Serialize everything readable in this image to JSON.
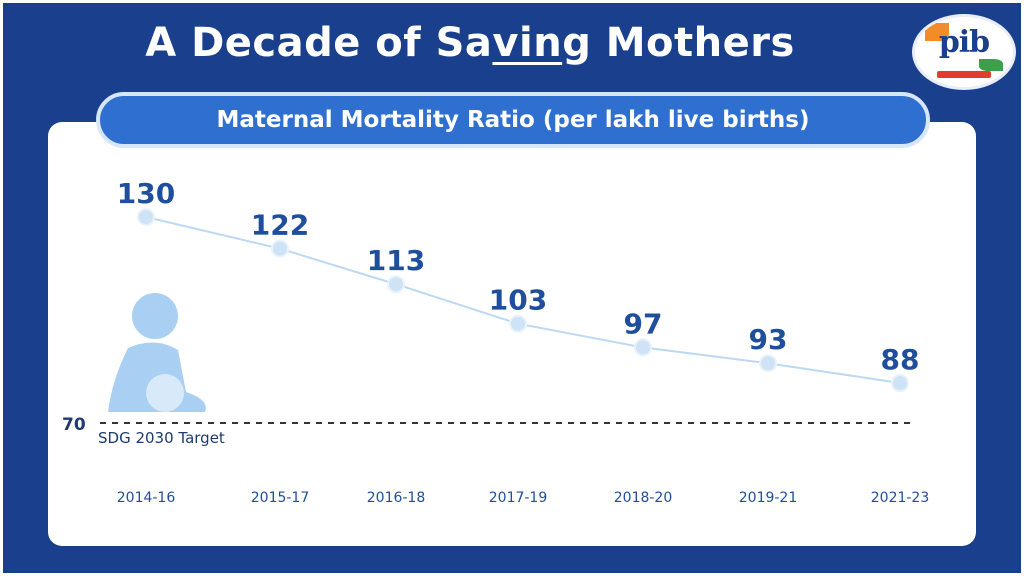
{
  "title_parts": [
    "A Decade of Sa",
    "vin",
    "g Mothers"
  ],
  "logo_text": "pib",
  "subtitle": "Maternal Mortality Ratio (per lakh live births)",
  "colors": {
    "background": "#1a3f8c",
    "accent": "#2f6fd0",
    "value_text": "#1f4e9c",
    "line": "#bcd8f3",
    "marker": "#cfe3f6"
  },
  "icons": {
    "logo": "pib-logo",
    "illustration": "pregnant-woman-icon"
  },
  "chart_data": {
    "type": "line",
    "title": "Maternal Mortality Ratio (per lakh live births)",
    "categories": [
      "2014-16",
      "2015-17",
      "2016-18",
      "2017-19",
      "2018-20",
      "2019-21",
      "2021-23"
    ],
    "values": [
      130,
      122,
      113,
      103,
      97,
      93,
      88
    ],
    "series": [
      {
        "values": [
          130,
          122,
          113,
          103,
          97,
          93,
          88
        ]
      }
    ],
    "reference_line": {
      "value": 70,
      "value_label": "70",
      "label": "SDG 2030 Target",
      "style": "dashed"
    },
    "data_labels": true,
    "grid": false
  }
}
